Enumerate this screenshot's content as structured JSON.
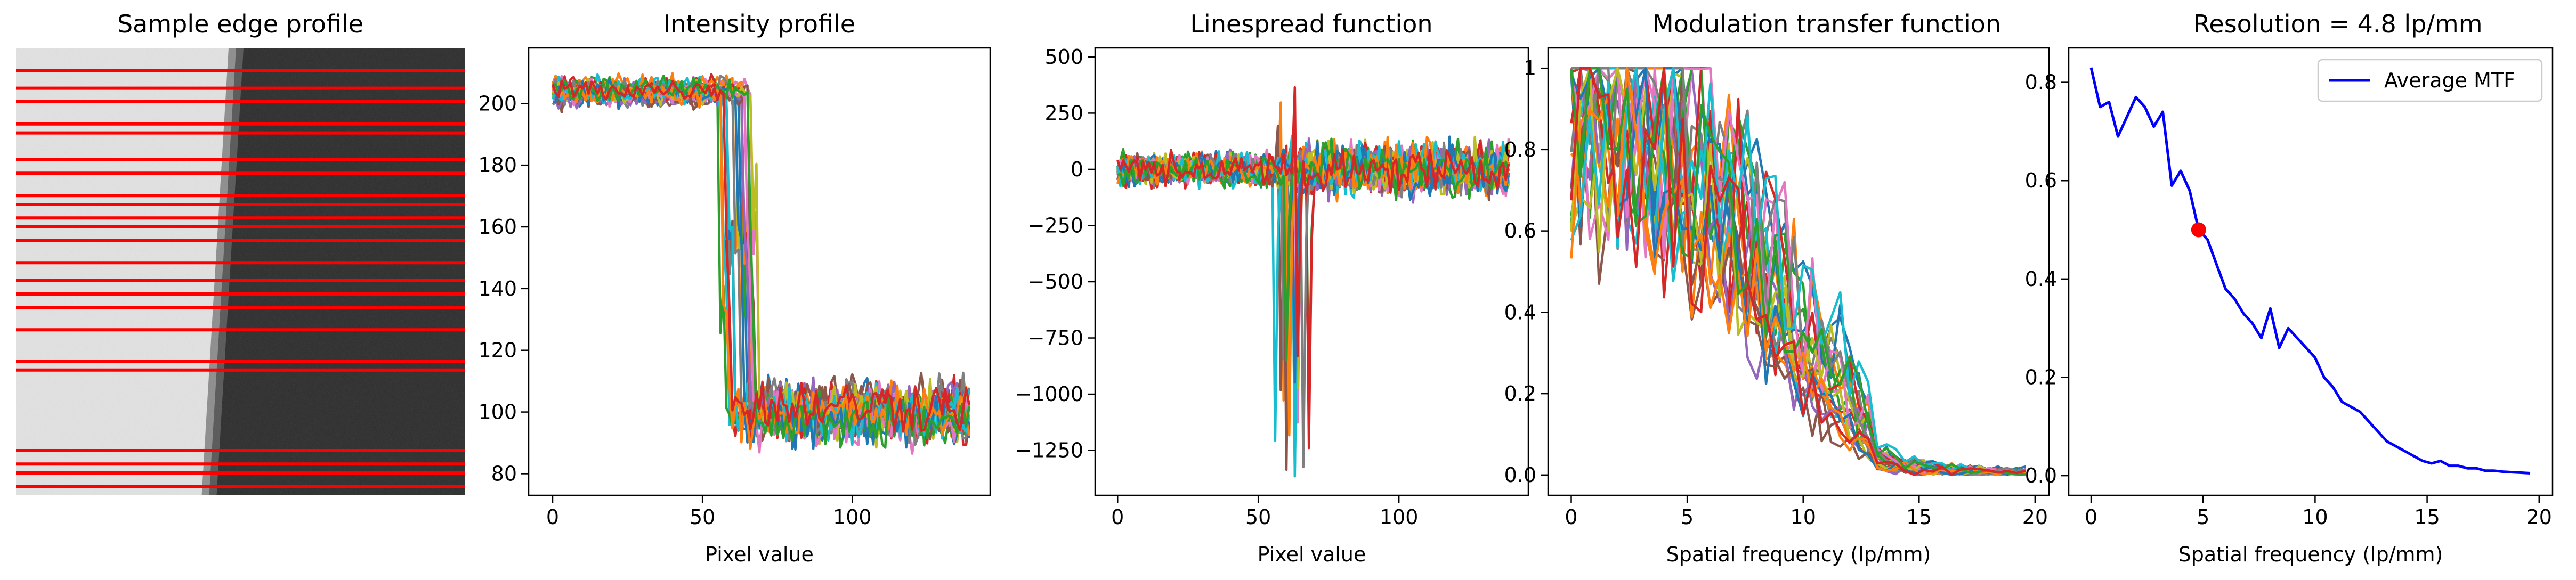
{
  "figure": {
    "background": "#ffffff"
  },
  "chart_data": [
    {
      "type": "image",
      "title": "Sample edge profile",
      "profile_line_color": "#ff0000",
      "profile_rows": [
        0.05,
        0.09,
        0.12,
        0.17,
        0.19,
        0.25,
        0.28,
        0.33,
        0.35,
        0.38,
        0.4,
        0.43,
        0.48,
        0.52,
        0.55,
        0.58,
        0.63,
        0.7,
        0.72,
        0.9,
        0.93,
        0.95,
        0.98
      ],
      "edge_position_top": 0.5,
      "edge_position_bottom": 0.44
    },
    {
      "type": "line",
      "title": "Intensity profile",
      "xlabel": "Pixel value",
      "ylabel": "",
      "xlim": [
        -8,
        146
      ],
      "ylim": [
        73,
        218
      ],
      "xticks": [
        0,
        50,
        100
      ],
      "yticks": [
        80,
        100,
        120,
        140,
        160,
        180,
        200
      ],
      "n_series": 24,
      "x_max": 139,
      "edge_center": 62,
      "edge_spread": 6,
      "high_level": 204,
      "low_level": 100,
      "noise": 5,
      "min_dip": 78
    },
    {
      "type": "line",
      "title": "Linespread function",
      "xlabel": "Pixel value",
      "ylabel": "",
      "xlim": [
        -8,
        146
      ],
      "ylim": [
        -1450,
        540
      ],
      "xticks": [
        0,
        50,
        100
      ],
      "yticks": [
        -1250,
        -1000,
        -750,
        -500,
        -250,
        0,
        250,
        500
      ],
      "n_series": 24,
      "x_max": 139,
      "edge_center": 62,
      "edge_spread": 6,
      "noise": 60,
      "peak_min": -1370,
      "peak_max": 440
    },
    {
      "type": "line",
      "title": "Modulation transfer function",
      "xlabel": "Spatial frequency (lp/mm)",
      "ylabel": "",
      "xlim": [
        -1,
        20.6
      ],
      "ylim": [
        -0.05,
        1.05
      ],
      "xticks": [
        0,
        5,
        10,
        15,
        20
      ],
      "yticks": [
        0.0,
        0.2,
        0.4,
        0.6,
        0.8,
        1.0
      ],
      "n_series": 24,
      "x_max": 19.6,
      "decay_center": 8.5,
      "decay_width": 2.2
    },
    {
      "type": "line",
      "title": "Resolution = 4.8 lp/mm",
      "xlabel": "Spatial frequency (lp/mm)",
      "ylabel": "",
      "xlim": [
        -1,
        20.6
      ],
      "ylim": [
        -0.04,
        0.87
      ],
      "xticks": [
        0,
        5,
        10,
        15,
        20
      ],
      "yticks": [
        0.0,
        0.2,
        0.4,
        0.6,
        0.8
      ],
      "legend": {
        "label": "Average MTF",
        "placement": "top-right"
      },
      "series": [
        {
          "name": "Average MTF",
          "color": "#0000ff",
          "x": [
            0.0,
            0.4,
            0.8,
            1.2,
            1.6,
            2.0,
            2.4,
            2.8,
            3.2,
            3.6,
            4.0,
            4.4,
            4.8,
            5.2,
            5.6,
            6.0,
            6.4,
            6.8,
            7.2,
            7.6,
            8.0,
            8.4,
            8.8,
            9.2,
            9.6,
            10.0,
            10.4,
            10.8,
            11.2,
            11.6,
            12.0,
            12.4,
            12.8,
            13.2,
            13.6,
            14.0,
            14.4,
            14.8,
            15.2,
            15.6,
            16.0,
            16.4,
            16.8,
            17.2,
            17.6,
            18.0,
            18.4,
            18.8,
            19.2,
            19.6
          ],
          "y": [
            0.83,
            0.75,
            0.76,
            0.69,
            0.73,
            0.77,
            0.75,
            0.71,
            0.74,
            0.59,
            0.62,
            0.58,
            0.5,
            0.48,
            0.43,
            0.38,
            0.36,
            0.33,
            0.31,
            0.28,
            0.34,
            0.26,
            0.3,
            0.28,
            0.26,
            0.24,
            0.2,
            0.18,
            0.15,
            0.14,
            0.13,
            0.11,
            0.09,
            0.07,
            0.06,
            0.05,
            0.04,
            0.03,
            0.025,
            0.03,
            0.02,
            0.02,
            0.015,
            0.015,
            0.01,
            0.01,
            0.008,
            0.007,
            0.006,
            0.005
          ]
        }
      ],
      "highlight_point": {
        "x": 4.8,
        "y": 0.5,
        "color": "#ff0000"
      }
    }
  ]
}
